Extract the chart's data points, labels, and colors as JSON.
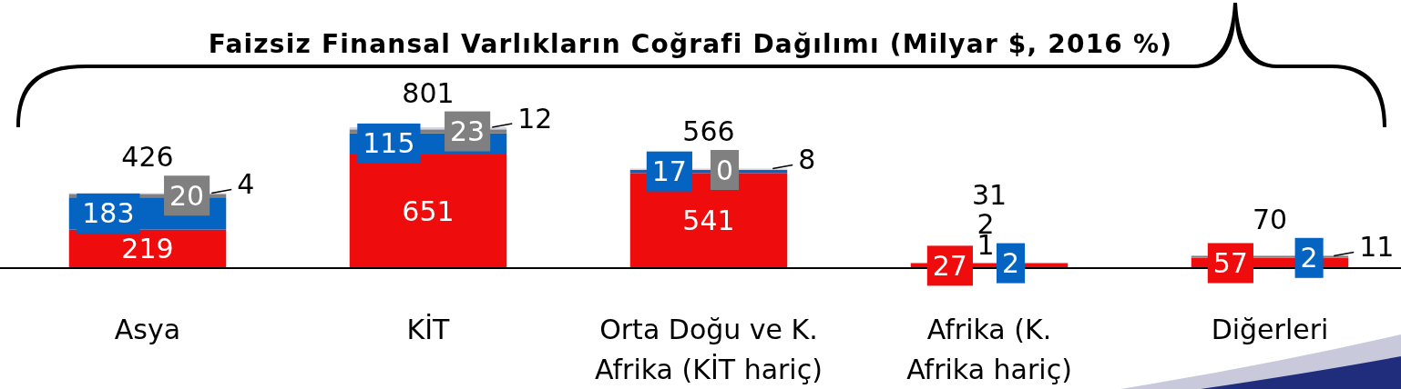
{
  "chart_data": {
    "type": "bar",
    "title": "Faizsiz Finansal Varlıkların Coğrafi Dağılımı (Milyar $, 2016 %)",
    "categories": [
      "Asya",
      "KİT",
      "Orta Doğu ve K. Afrika (KİT hariç)",
      "Afrika (K. Afrika hariç)",
      "Diğerleri"
    ],
    "stacked": true,
    "tick_labels": "x",
    "data_labels": true,
    "series": [
      {
        "color": "#ee0c0c",
        "values": [
          219,
          651,
          541,
          27,
          57
        ]
      },
      {
        "color": "#0563c1",
        "values": [
          183,
          115,
          17,
          2,
          2
        ]
      },
      {
        "color": "#808080",
        "values": [
          20,
          23,
          0,
          1,
          11
        ]
      },
      {
        "color": "#d4d6e6",
        "values": [
          4,
          12,
          8,
          2,
          null
        ]
      }
    ],
    "totals": [
      "426",
      "801",
      "566",
      "31",
      "70"
    ]
  }
}
